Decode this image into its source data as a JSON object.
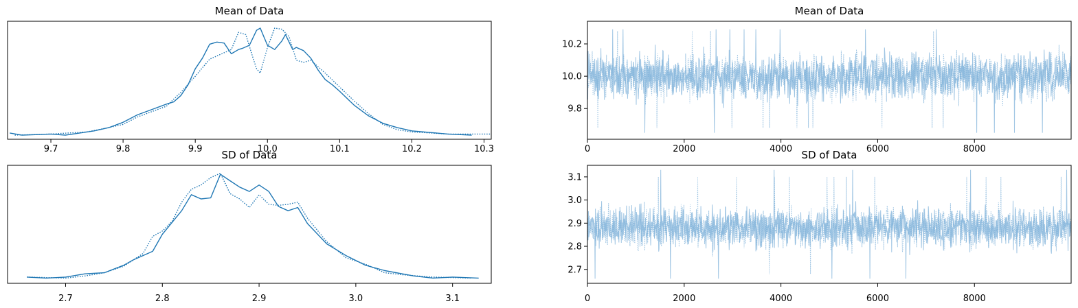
{
  "chart_data": [
    {
      "type": "line",
      "kind": "kde",
      "title": "Mean of Data",
      "xlabel": "",
      "ylabel": "",
      "xlim": [
        9.64,
        10.31
      ],
      "xticks": [
        "9.7",
        "9.8",
        "9.9",
        "10.0",
        "10.1",
        "10.2",
        "10.3"
      ],
      "yticks_visible": false,
      "color": "#1f77b4",
      "series": [
        {
          "line_style": "solid",
          "x": [
            9.643,
            9.66,
            9.7,
            9.72,
            9.74,
            9.76,
            9.78,
            9.8,
            9.82,
            9.84,
            9.86,
            9.87,
            9.88,
            9.89,
            9.9,
            9.91,
            9.92,
            9.93,
            9.94,
            9.95,
            9.96,
            9.965,
            9.975,
            9.985,
            9.99,
            9.995,
            10.0,
            10.01,
            10.02,
            10.025,
            10.035,
            10.04,
            10.05,
            10.06,
            10.07,
            10.08,
            10.09,
            10.1,
            10.12,
            10.14,
            10.16,
            10.18,
            10.2,
            10.25,
            10.283
          ],
          "y": [
            0.02,
            0.0,
            0.01,
            0.0,
            0.02,
            0.04,
            0.07,
            0.12,
            0.19,
            0.24,
            0.29,
            0.31,
            0.37,
            0.47,
            0.62,
            0.72,
            0.85,
            0.87,
            0.86,
            0.76,
            0.8,
            0.81,
            0.84,
            0.98,
            1.0,
            0.92,
            0.84,
            0.8,
            0.88,
            0.94,
            0.8,
            0.82,
            0.79,
            0.72,
            0.61,
            0.52,
            0.47,
            0.41,
            0.28,
            0.18,
            0.11,
            0.07,
            0.04,
            0.01,
            0.0
          ]
        },
        {
          "line_style": "dotted",
          "x": [
            9.65,
            9.7,
            9.75,
            9.78,
            9.8,
            9.82,
            9.84,
            9.86,
            9.88,
            9.9,
            9.92,
            9.94,
            9.95,
            9.96,
            9.97,
            9.98,
            9.985,
            9.99,
            10.0,
            10.01,
            10.02,
            10.03,
            10.04,
            10.05,
            10.06,
            10.08,
            10.1,
            10.12,
            10.14,
            10.16,
            10.18,
            10.2,
            10.25,
            10.31
          ],
          "y": [
            0.0,
            0.01,
            0.03,
            0.07,
            0.1,
            0.17,
            0.22,
            0.27,
            0.4,
            0.55,
            0.71,
            0.77,
            0.8,
            0.96,
            0.94,
            0.72,
            0.62,
            0.58,
            0.82,
            1.0,
            0.99,
            0.92,
            0.7,
            0.68,
            0.7,
            0.58,
            0.45,
            0.32,
            0.2,
            0.1,
            0.05,
            0.03,
            0.01,
            0.01
          ]
        }
      ]
    },
    {
      "type": "line",
      "kind": "trace",
      "title": "Mean of Data",
      "xlabel": "",
      "ylabel": "",
      "xlim": [
        0,
        9999
      ],
      "ylim": [
        9.61,
        10.34
      ],
      "xticks": [
        "0",
        "2000",
        "4000",
        "6000",
        "8000"
      ],
      "yticks": [
        "9.8",
        "10.0",
        "10.2"
      ],
      "color": "#7fb2d9",
      "n_draws": 10000,
      "series": [
        {
          "line_style": "solid",
          "center": 10.0,
          "typical_range": [
            9.8,
            10.2
          ],
          "extremes": [
            9.65,
            10.29
          ]
        },
        {
          "line_style": "dotted",
          "center": 10.0,
          "typical_range": [
            9.8,
            10.2
          ],
          "extremes": [
            9.68,
            10.28
          ]
        }
      ]
    },
    {
      "type": "line",
      "kind": "kde",
      "title": "SD of Data",
      "xlabel": "",
      "ylabel": "",
      "xlim": [
        2.64,
        3.14
      ],
      "xticks": [
        "2.7",
        "2.8",
        "2.9",
        "3.0",
        "3.1"
      ],
      "yticks_visible": false,
      "color": "#1f77b4",
      "series": [
        {
          "line_style": "solid",
          "x": [
            2.66,
            2.68,
            2.7,
            2.72,
            2.74,
            2.76,
            2.77,
            2.79,
            2.8,
            2.81,
            2.82,
            2.83,
            2.84,
            2.85,
            2.86,
            2.87,
            2.88,
            2.89,
            2.9,
            2.91,
            2.92,
            2.93,
            2.94,
            2.95,
            2.97,
            2.99,
            3.01,
            3.03,
            3.06,
            3.08,
            3.1,
            3.127
          ],
          "y": [
            0.02,
            0.01,
            0.02,
            0.05,
            0.06,
            0.13,
            0.18,
            0.26,
            0.42,
            0.53,
            0.64,
            0.79,
            0.75,
            0.76,
            0.98,
            0.92,
            0.86,
            0.82,
            0.88,
            0.82,
            0.68,
            0.64,
            0.67,
            0.52,
            0.33,
            0.22,
            0.13,
            0.08,
            0.03,
            0.01,
            0.02,
            0.01
          ]
        },
        {
          "line_style": "dotted",
          "x": [
            2.66,
            2.7,
            2.72,
            2.74,
            2.76,
            2.78,
            2.79,
            2.8,
            2.81,
            2.82,
            2.83,
            2.84,
            2.85,
            2.86,
            2.87,
            2.88,
            2.89,
            2.9,
            2.91,
            2.92,
            2.93,
            2.94,
            2.95,
            2.97,
            2.99,
            3.01,
            3.03,
            3.05,
            3.08,
            3.12
          ],
          "y": [
            0.02,
            0.01,
            0.03,
            0.06,
            0.12,
            0.24,
            0.4,
            0.45,
            0.54,
            0.72,
            0.84,
            0.88,
            0.95,
            0.99,
            0.8,
            0.75,
            0.67,
            0.79,
            0.7,
            0.69,
            0.7,
            0.72,
            0.57,
            0.35,
            0.2,
            0.14,
            0.06,
            0.04,
            0.02,
            0.01
          ]
        }
      ]
    },
    {
      "type": "line",
      "kind": "trace",
      "title": "SD of Data",
      "xlabel": "",
      "ylabel": "",
      "xlim": [
        0,
        9999
      ],
      "ylim": [
        2.64,
        3.15
      ],
      "xticks": [
        "0",
        "2000",
        "4000",
        "6000",
        "8000"
      ],
      "yticks": [
        "2.7",
        "2.8",
        "2.9",
        "3.0",
        "3.1"
      ],
      "color": "#7fb2d9",
      "n_draws": 10000,
      "series": [
        {
          "line_style": "solid",
          "center": 2.88,
          "typical_range": [
            2.75,
            3.0
          ],
          "extremes": [
            2.66,
            3.13
          ]
        },
        {
          "line_style": "dotted",
          "center": 2.88,
          "typical_range": [
            2.75,
            3.0
          ],
          "extremes": [
            2.68,
            3.1
          ]
        }
      ]
    }
  ]
}
